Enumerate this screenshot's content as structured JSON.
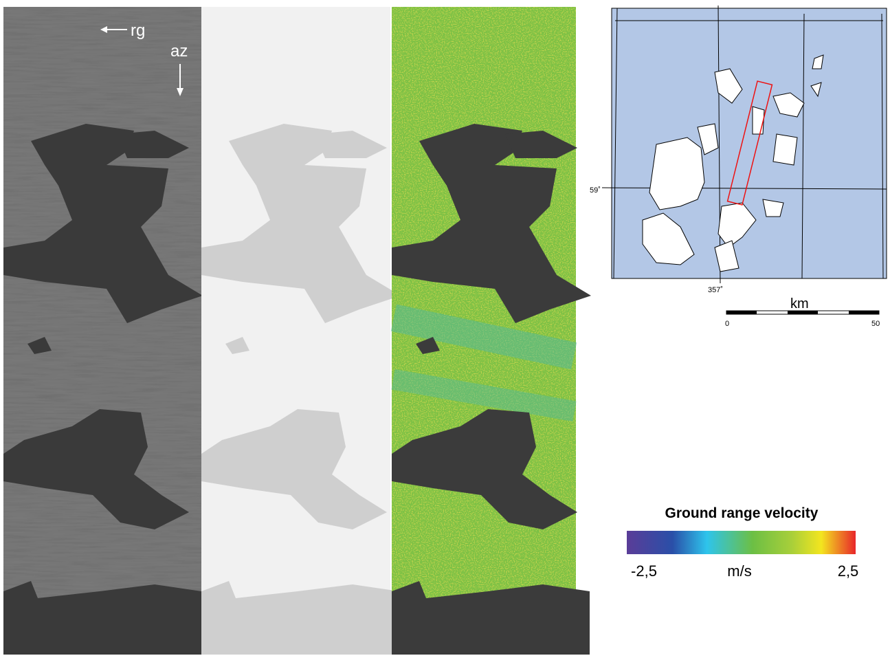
{
  "image_panels": {
    "range_label": "rg",
    "azimuth_label": "az"
  },
  "map": {
    "latitude_label": "59˚",
    "longitude_label": "357˚",
    "scale_unit": "km",
    "scale_start": "0",
    "scale_end": "50"
  },
  "colorbar": {
    "title": "Ground range velocity",
    "min_label": "-2,5",
    "unit_label": "m/s",
    "max_label": "2,5"
  }
}
